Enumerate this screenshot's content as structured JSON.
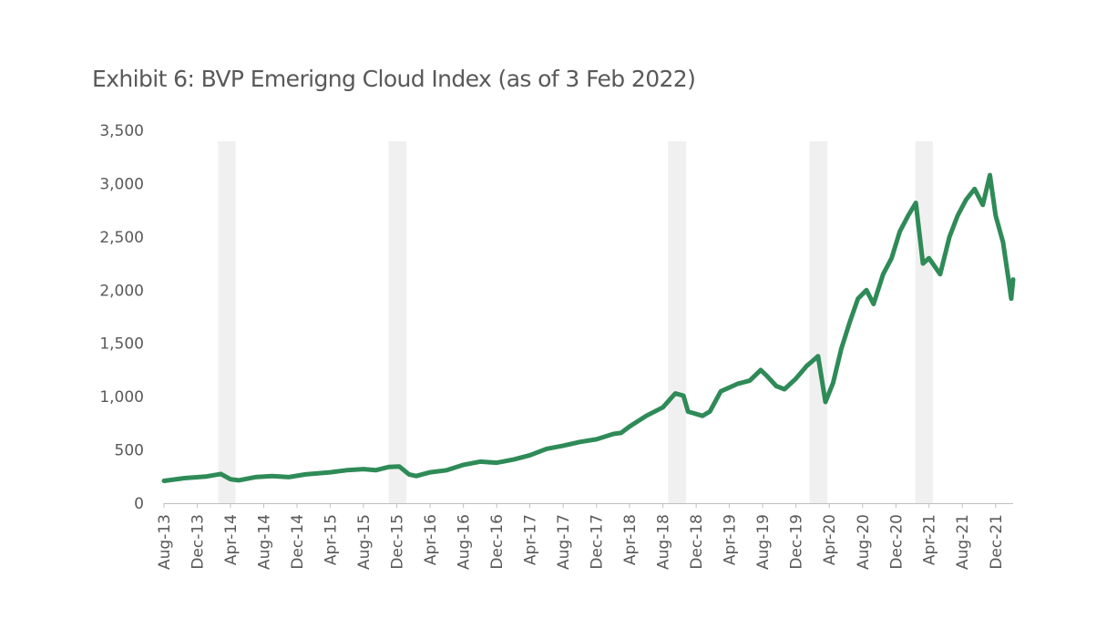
{
  "chart_data": {
    "type": "line",
    "title": "Exhibit 6: BVP Emerigng Cloud Index (as of 3 Feb 2022)",
    "xlabel": "",
    "ylabel": "",
    "ylim": [
      0,
      3500
    ],
    "yticks": [
      "0",
      "500",
      "1,000",
      "1,500",
      "2,000",
      "2,500",
      "3,000",
      "3,500"
    ],
    "ytick_values": [
      0,
      500,
      1000,
      1500,
      2000,
      2500,
      3000,
      3500
    ],
    "xlim": [
      "2013-08-01",
      "2022-02-03"
    ],
    "xticks": [
      "Aug-13",
      "Dec-13",
      "Apr-14",
      "Aug-14",
      "Dec-14",
      "Apr-15",
      "Aug-15",
      "Dec-15",
      "Apr-16",
      "Aug-16",
      "Dec-16",
      "Apr-17",
      "Aug-17",
      "Dec-17",
      "Apr-18",
      "Aug-18",
      "Dec-18",
      "Apr-19",
      "Aug-19",
      "Dec-19",
      "Apr-20",
      "Aug-20",
      "Dec-20",
      "Apr-21",
      "Aug-21",
      "Dec-21"
    ],
    "xtick_dates": [
      "2013-08-01",
      "2013-12-01",
      "2014-04-01",
      "2014-08-01",
      "2014-12-01",
      "2015-04-01",
      "2015-08-01",
      "2015-12-01",
      "2016-04-01",
      "2016-08-01",
      "2016-12-01",
      "2017-04-01",
      "2017-08-01",
      "2017-12-01",
      "2018-04-01",
      "2018-08-01",
      "2018-12-01",
      "2019-04-01",
      "2019-08-01",
      "2019-12-01",
      "2020-04-01",
      "2020-08-01",
      "2020-12-01",
      "2021-04-01",
      "2021-08-01",
      "2021-12-01"
    ],
    "grid": false,
    "shaded_periods": [
      {
        "start": "2014-02-15",
        "end": "2014-04-20"
      },
      {
        "start": "2015-11-01",
        "end": "2016-01-05"
      },
      {
        "start": "2018-08-20",
        "end": "2018-10-25"
      },
      {
        "start": "2020-01-20",
        "end": "2020-03-25"
      },
      {
        "start": "2021-02-10",
        "end": "2021-04-15"
      }
    ],
    "colors": {
      "line": "#2e8b57",
      "shade": "#f0f0f0",
      "axis": "#bfbfbf",
      "text": "#595959"
    },
    "series": [
      {
        "name": "",
        "points": [
          [
            "2013-08-01",
            210
          ],
          [
            "2013-10-15",
            235
          ],
          [
            "2014-01-01",
            250
          ],
          [
            "2014-02-25",
            275
          ],
          [
            "2014-04-01",
            225
          ],
          [
            "2014-05-01",
            215
          ],
          [
            "2014-07-01",
            245
          ],
          [
            "2014-09-01",
            255
          ],
          [
            "2014-11-01",
            245
          ],
          [
            "2015-01-01",
            270
          ],
          [
            "2015-04-01",
            290
          ],
          [
            "2015-06-01",
            310
          ],
          [
            "2015-08-01",
            320
          ],
          [
            "2015-09-15",
            310
          ],
          [
            "2015-11-01",
            340
          ],
          [
            "2015-12-10",
            345
          ],
          [
            "2016-01-15",
            270
          ],
          [
            "2016-02-10",
            255
          ],
          [
            "2016-04-01",
            290
          ],
          [
            "2016-06-01",
            310
          ],
          [
            "2016-08-01",
            360
          ],
          [
            "2016-10-01",
            390
          ],
          [
            "2016-12-01",
            380
          ],
          [
            "2017-02-01",
            410
          ],
          [
            "2017-04-01",
            450
          ],
          [
            "2017-06-01",
            510
          ],
          [
            "2017-08-01",
            540
          ],
          [
            "2017-10-01",
            575
          ],
          [
            "2017-12-01",
            600
          ],
          [
            "2018-02-01",
            650
          ],
          [
            "2018-03-01",
            660
          ],
          [
            "2018-04-01",
            720
          ],
          [
            "2018-06-01",
            820
          ],
          [
            "2018-08-01",
            900
          ],
          [
            "2018-09-15",
            1030
          ],
          [
            "2018-10-15",
            1010
          ],
          [
            "2018-11-01",
            860
          ],
          [
            "2018-12-24",
            820
          ],
          [
            "2019-01-20",
            860
          ],
          [
            "2019-03-01",
            1050
          ],
          [
            "2019-05-01",
            1120
          ],
          [
            "2019-06-15",
            1150
          ],
          [
            "2019-07-25",
            1250
          ],
          [
            "2019-08-15",
            1200
          ],
          [
            "2019-09-20",
            1100
          ],
          [
            "2019-10-20",
            1070
          ],
          [
            "2019-12-01",
            1170
          ],
          [
            "2020-01-10",
            1290
          ],
          [
            "2020-02-20",
            1380
          ],
          [
            "2020-03-18",
            950
          ],
          [
            "2020-04-15",
            1130
          ],
          [
            "2020-05-15",
            1450
          ],
          [
            "2020-06-15",
            1700
          ],
          [
            "2020-07-15",
            1920
          ],
          [
            "2020-08-15",
            2000
          ],
          [
            "2020-09-10",
            1870
          ],
          [
            "2020-10-15",
            2150
          ],
          [
            "2020-11-15",
            2300
          ],
          [
            "2020-12-15",
            2550
          ],
          [
            "2021-01-15",
            2700
          ],
          [
            "2021-02-12",
            2820
          ],
          [
            "2021-03-10",
            2250
          ],
          [
            "2021-04-01",
            2300
          ],
          [
            "2021-05-12",
            2150
          ],
          [
            "2021-06-15",
            2500
          ],
          [
            "2021-07-15",
            2700
          ],
          [
            "2021-08-15",
            2850
          ],
          [
            "2021-09-15",
            2950
          ],
          [
            "2021-10-15",
            2800
          ],
          [
            "2021-11-10",
            3080
          ],
          [
            "2021-12-01",
            2700
          ],
          [
            "2021-12-28",
            2450
          ],
          [
            "2022-01-20",
            2050
          ],
          [
            "2022-01-27",
            1920
          ],
          [
            "2022-02-03",
            2100
          ]
        ]
      }
    ]
  }
}
